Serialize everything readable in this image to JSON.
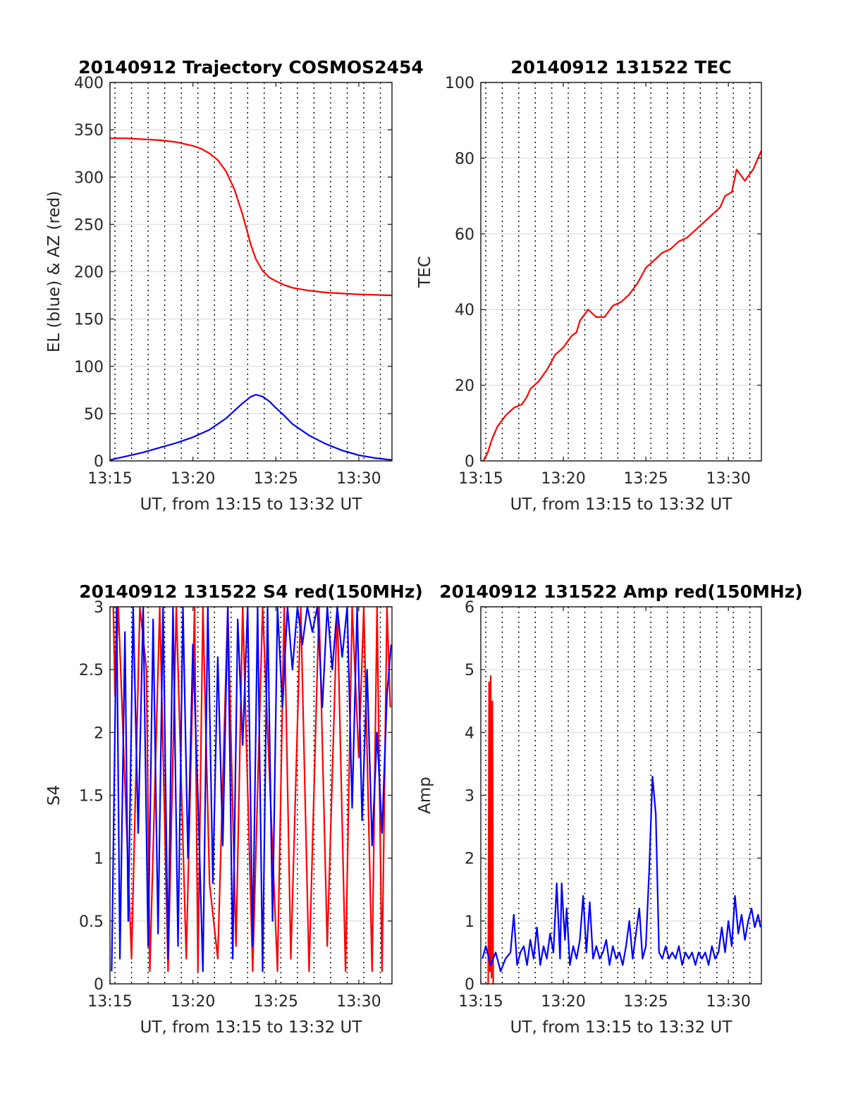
{
  "figure": {
    "background": "#ffffff"
  },
  "chart_data": [
    {
      "id": "trajectory",
      "type": "line",
      "title": "20140912 Trajectory COSMOS2454",
      "xlabel": "UT, from 13:15 to 13:32 UT",
      "ylabel": "EL (blue) & AZ (red)",
      "x_ticks": [
        "13:15",
        "13:20",
        "13:25",
        "13:30"
      ],
      "x_tick_values": [
        0,
        5,
        10,
        15
      ],
      "xlim": [
        0,
        17
      ],
      "ylim": [
        0,
        400
      ],
      "y_ticks": [
        "0",
        "50",
        "100",
        "150",
        "200",
        "250",
        "300",
        "350",
        "400"
      ],
      "y_tick_values": [
        0,
        50,
        100,
        150,
        200,
        250,
        300,
        350,
        400
      ],
      "grid": {
        "horizontal": true,
        "vertical_dotted": true
      },
      "series": [
        {
          "key": "az",
          "color": "#ff0000",
          "x": [
            0,
            1,
            2,
            3,
            4,
            5,
            5.5,
            6,
            6.5,
            7,
            7.5,
            8,
            8.5,
            8.8,
            9.2,
            9.6,
            10,
            10.5,
            11,
            12,
            13,
            14,
            15,
            16,
            17
          ],
          "values": [
            341,
            341,
            340,
            339,
            337,
            333,
            330,
            325,
            318,
            306,
            287,
            260,
            228,
            213,
            201,
            194,
            190,
            186,
            183,
            180,
            178,
            177,
            176,
            175.5,
            175
          ]
        },
        {
          "key": "el",
          "color": "#0000ff",
          "x": [
            0,
            1,
            2,
            3,
            4,
            5,
            6,
            7,
            7.5,
            8,
            8.5,
            8.8,
            9.2,
            9.6,
            10,
            10.5,
            11,
            12,
            13,
            14,
            15,
            16,
            17
          ],
          "values": [
            1,
            5,
            9,
            14,
            19,
            25,
            33,
            45,
            53,
            61,
            68,
            70,
            68,
            63,
            56,
            48,
            39,
            27,
            18,
            11,
            6,
            3,
            1
          ]
        }
      ]
    },
    {
      "id": "tec",
      "type": "line",
      "title": "20140912 131522 TEC",
      "xlabel": "UT, from 13:15 to 13:32 UT",
      "ylabel": "TEC",
      "x_ticks": [
        "13:15",
        "13:20",
        "13:25",
        "13:30"
      ],
      "x_tick_values": [
        0,
        5,
        10,
        15
      ],
      "xlim": [
        0,
        17
      ],
      "ylim": [
        0,
        100
      ],
      "y_ticks": [
        "0",
        "20",
        "40",
        "60",
        "80",
        "100"
      ],
      "y_tick_values": [
        0,
        20,
        40,
        60,
        80,
        100
      ],
      "grid": {
        "horizontal": true,
        "vertical_dotted": true
      },
      "series": [
        {
          "key": "tec",
          "color": "#ff0000",
          "x": [
            0.15,
            0.4,
            0.7,
            1.0,
            1.5,
            2.0,
            2.5,
            2.8,
            3.0,
            3.5,
            4.0,
            4.5,
            5.0,
            5.5,
            5.8,
            6.0,
            6.5,
            7.0,
            7.5,
            8.0,
            8.5,
            9.0,
            9.5,
            10.0,
            10.5,
            11.0,
            11.5,
            12.0,
            12.5,
            13.0,
            13.5,
            14.0,
            14.5,
            14.8,
            15.2,
            15.5,
            16.0,
            16.5,
            17.0
          ],
          "values": [
            0,
            2,
            6,
            9,
            12,
            14,
            15,
            17,
            19,
            21,
            24,
            28,
            30,
            33,
            34,
            37,
            40,
            38,
            38,
            41,
            42,
            44,
            47,
            51,
            53,
            55,
            56,
            58,
            59,
            61,
            63,
            65,
            67,
            70,
            71,
            77,
            74,
            77,
            82
          ]
        }
      ]
    },
    {
      "id": "s4",
      "type": "line",
      "title": "20140912 131522 S4 red(150MHz)",
      "xlabel": "UT, from 13:15 to 13:32 UT",
      "ylabel": "S4",
      "x_ticks": [
        "13:15",
        "13:20",
        "13:25",
        "13:30"
      ],
      "x_tick_values": [
        0,
        5,
        10,
        15
      ],
      "xlim": [
        0,
        17
      ],
      "ylim": [
        0,
        3
      ],
      "y_ticks": [
        "0",
        "0.5",
        "1",
        "1.5",
        "2",
        "2.5",
        "3"
      ],
      "y_tick_values": [
        0,
        0.5,
        1,
        1.5,
        2,
        2.5,
        3
      ],
      "grid": {
        "horizontal": true,
        "vertical_dotted": true
      },
      "series": [
        {
          "key": "s4_red",
          "color": "#ff0000",
          "x": [
            0.2,
            0.3,
            0.5,
            1.3,
            1.8,
            2.2,
            2.4,
            3.0,
            3.5,
            4.0,
            4.6,
            5.1,
            5.3,
            5.6,
            6.0,
            6.5,
            7.1,
            7.6,
            8.0,
            8.6,
            9.2,
            10.1,
            10.5,
            10.9,
            11.5,
            12.0,
            12.6,
            13.1,
            13.7,
            14.2,
            14.6,
            15.0,
            15.3,
            15.8,
            16.1,
            16.4,
            16.7,
            16.9
          ],
          "values": [
            3,
            2.3,
            3,
            0.2,
            3,
            2.5,
            0.1,
            3,
            0.1,
            3,
            0.2,
            3,
            0.1,
            3,
            0.8,
            0.2,
            3,
            0.3,
            3,
            0.1,
            3,
            0.1,
            3,
            0.2,
            3,
            0.1,
            3,
            0.3,
            3,
            0.1,
            3,
            1.8,
            3,
            0.1,
            3,
            0.1,
            3,
            2.2
          ]
        },
        {
          "key": "s4_blue",
          "color": "#0000ff",
          "x": [
            0.1,
            0.4,
            0.6,
            0.9,
            1.1,
            1.4,
            1.7,
            2.0,
            2.3,
            2.6,
            2.9,
            3.2,
            3.5,
            3.8,
            4.1,
            4.4,
            4.7,
            5.0,
            5.3,
            5.6,
            5.9,
            6.2,
            6.5,
            6.8,
            7.1,
            7.4,
            7.7,
            8.0,
            8.3,
            8.6,
            8.9,
            9.2,
            9.5,
            9.8,
            10.1,
            10.4,
            10.7,
            11.0,
            11.3,
            11.6,
            11.9,
            12.2,
            12.5,
            12.8,
            13.1,
            13.4,
            13.7,
            14.0,
            14.3,
            14.6,
            14.9,
            15.2,
            15.5,
            15.8,
            16.1,
            16.4,
            16.7,
            16.95
          ],
          "values": [
            0.1,
            3,
            0.2,
            2.8,
            0.5,
            3,
            1.2,
            3,
            0.3,
            2.9,
            0.4,
            3,
            0.2,
            3,
            0.3,
            3,
            1.0,
            2.7,
            1.5,
            0.1,
            3,
            0.8,
            2.6,
            1.1,
            3,
            0.2,
            2.9,
            1.9,
            3,
            0.3,
            3,
            0.1,
            3,
            0.5,
            3,
            2.2,
            3,
            2.5,
            3,
            2.7,
            3,
            2.8,
            3,
            2.2,
            3,
            2.5,
            3,
            2.6,
            3,
            1.4,
            3,
            1.3,
            2.5,
            1.1,
            2.0,
            1.2,
            2.3,
            2.7
          ]
        }
      ]
    },
    {
      "id": "amp",
      "type": "line",
      "title": "20140912 131522 Amp red(150MHz)",
      "xlabel": "UT, from 13:15 to 13:32 UT",
      "ylabel": "Amp",
      "x_ticks": [
        "13:15",
        "13:20",
        "13:25",
        "13:30"
      ],
      "x_tick_values": [
        0,
        5,
        10,
        15
      ],
      "xlim": [
        0,
        17
      ],
      "ylim": [
        0,
        6
      ],
      "y_ticks": [
        "0",
        "1",
        "2",
        "3",
        "4",
        "5",
        "6"
      ],
      "y_tick_values": [
        0,
        1,
        2,
        3,
        4,
        5,
        6
      ],
      "grid": {
        "horizontal": true,
        "vertical_dotted": true
      },
      "series": [
        {
          "key": "amp_red",
          "color": "#ff0000",
          "x": [
            0.35,
            0.45,
            0.5,
            0.55,
            0.6,
            0.65,
            0.7,
            0.75,
            0.8
          ],
          "values": [
            0,
            0,
            4.8,
            0.2,
            4.9,
            0.1,
            4.5,
            0,
            0
          ]
        },
        {
          "key": "amp_blue",
          "color": "#0000ff",
          "x": [
            0.1,
            0.3,
            0.6,
            0.9,
            1.2,
            1.5,
            1.8,
            2.0,
            2.2,
            2.4,
            2.6,
            2.8,
            3.0,
            3.2,
            3.4,
            3.6,
            3.8,
            4.0,
            4.2,
            4.4,
            4.6,
            4.8,
            4.9,
            5.0,
            5.1,
            5.2,
            5.4,
            5.6,
            5.8,
            6.0,
            6.2,
            6.4,
            6.6,
            6.8,
            7.0,
            7.2,
            7.4,
            7.6,
            7.8,
            8.0,
            8.2,
            8.4,
            8.6,
            8.8,
            9.0,
            9.2,
            9.4,
            9.6,
            9.8,
            10.0,
            10.2,
            10.4,
            10.6,
            10.8,
            11.0,
            11.2,
            11.4,
            11.6,
            11.8,
            12.0,
            12.2,
            12.4,
            12.6,
            12.8,
            13.0,
            13.2,
            13.4,
            13.6,
            13.8,
            14.0,
            14.2,
            14.4,
            14.6,
            14.8,
            15.0,
            15.2,
            15.4,
            15.6,
            15.8,
            16.0,
            16.2,
            16.4,
            16.6,
            16.8,
            16.95
          ],
          "values": [
            0.4,
            0.6,
            0.3,
            0.5,
            0.2,
            0.4,
            0.5,
            1.1,
            0.3,
            0.5,
            0.6,
            0.3,
            0.7,
            0.4,
            0.9,
            0.3,
            0.6,
            0.4,
            0.8,
            0.5,
            1.6,
            0.4,
            1.6,
            1.1,
            0.7,
            1.2,
            0.3,
            0.6,
            0.4,
            0.7,
            1.4,
            0.5,
            1.3,
            0.4,
            0.6,
            0.4,
            0.5,
            0.7,
            0.3,
            0.6,
            0.4,
            0.5,
            0.3,
            0.6,
            1.0,
            0.4,
            0.8,
            1.2,
            0.4,
            0.6,
            1.8,
            3.3,
            2.7,
            0.5,
            0.4,
            0.6,
            0.4,
            0.5,
            0.4,
            0.6,
            0.3,
            0.5,
            0.4,
            0.5,
            0.3,
            0.5,
            0.4,
            0.5,
            0.3,
            0.6,
            0.4,
            0.5,
            0.9,
            0.5,
            1.0,
            0.6,
            1.4,
            0.8,
            1.1,
            0.7,
            1.0,
            1.2,
            0.9,
            1.1,
            0.9
          ]
        }
      ]
    }
  ]
}
